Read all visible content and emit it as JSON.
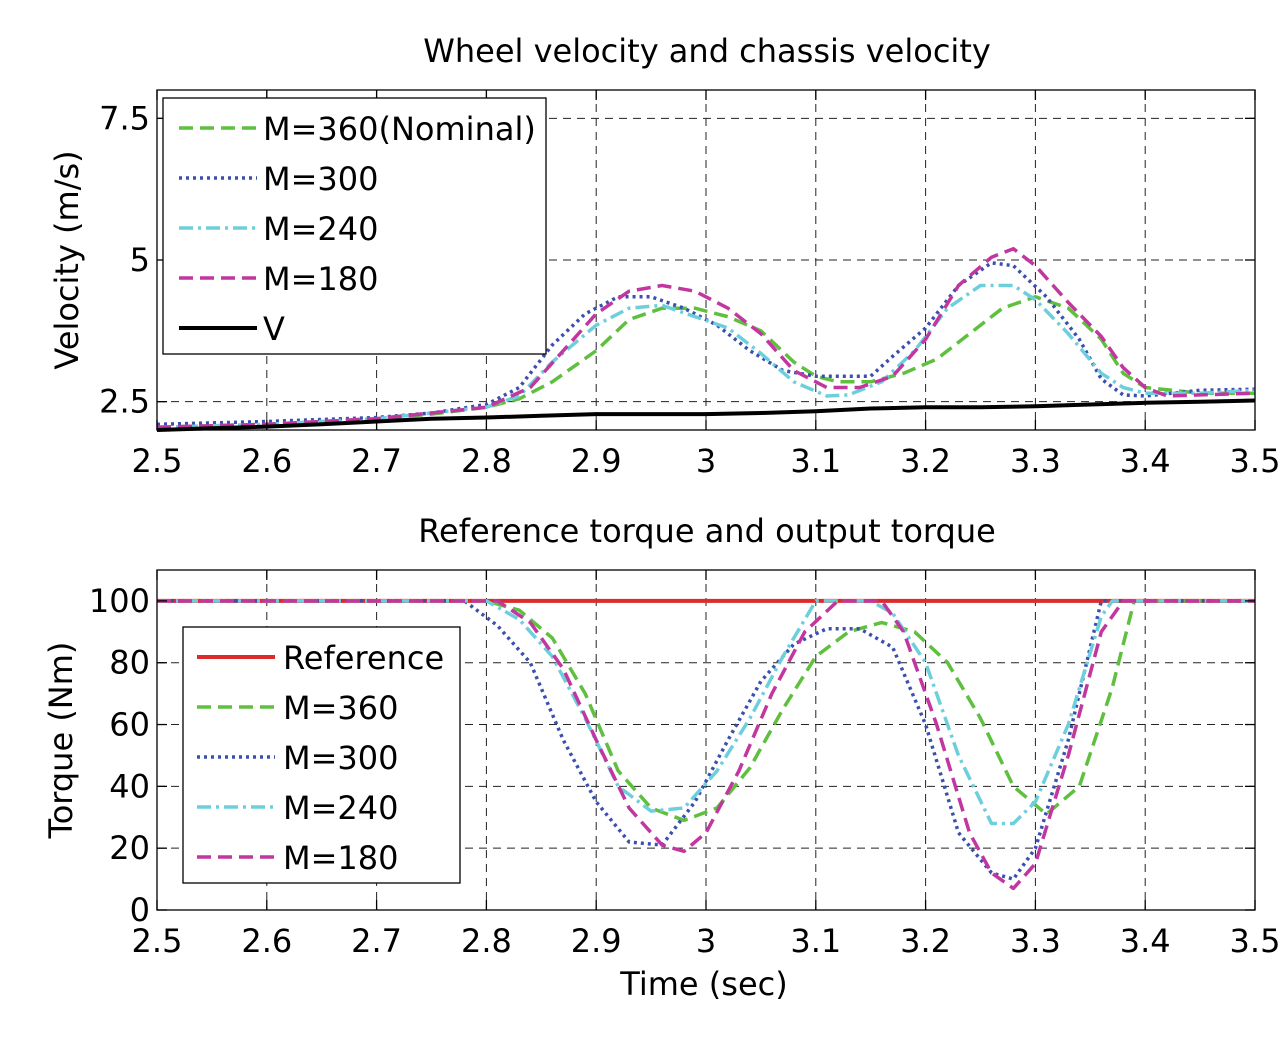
{
  "chart_data": [
    {
      "type": "line",
      "title": "Wheel velocity and chassis velocity",
      "xlabel": "",
      "ylabel": "Velocity (m/s)",
      "xlim": [
        2.5,
        3.5
      ],
      "ylim": [
        2.0,
        8.0
      ],
      "xticks": [
        2.5,
        2.6,
        2.7,
        2.8,
        2.9,
        3.0,
        3.1,
        3.2,
        3.3,
        3.4,
        3.5
      ],
      "xtick_labels": [
        "2.5",
        "2.6",
        "2.7",
        "2.8",
        "2.9",
        "3",
        "3.1",
        "3.2",
        "3.3",
        "3.4",
        "3.5"
      ],
      "yticks": [
        2.5,
        5,
        7.5
      ],
      "ytick_labels": [
        "2.5",
        "5",
        "7.5"
      ],
      "grid": true,
      "legend_position": "top-left",
      "series": [
        {
          "name": "M=360(Nominal)",
          "color": "#5fbf3f",
          "style": "dashed",
          "x": [
            2.5,
            2.6,
            2.7,
            2.75,
            2.8,
            2.83,
            2.86,
            2.9,
            2.93,
            2.96,
            2.99,
            3.02,
            3.05,
            3.08,
            3.1,
            3.12,
            3.15,
            3.18,
            3.21,
            3.24,
            3.27,
            3.3,
            3.33,
            3.36,
            3.38,
            3.4,
            3.45,
            3.5
          ],
          "y": [
            2.05,
            2.1,
            2.2,
            2.28,
            2.4,
            2.55,
            2.85,
            3.4,
            3.95,
            4.15,
            4.15,
            4.0,
            3.75,
            3.2,
            2.95,
            2.85,
            2.85,
            3.0,
            3.25,
            3.7,
            4.15,
            4.35,
            4.15,
            3.6,
            3.0,
            2.75,
            2.65,
            2.65
          ]
        },
        {
          "name": "M=300",
          "color": "#3b4fae",
          "style": "dotted",
          "x": [
            2.5,
            2.6,
            2.7,
            2.75,
            2.8,
            2.83,
            2.86,
            2.89,
            2.92,
            2.95,
            2.98,
            3.01,
            3.04,
            3.07,
            3.1,
            3.12,
            3.15,
            3.17,
            3.2,
            3.23,
            3.26,
            3.28,
            3.31,
            3.34,
            3.36,
            3.38,
            3.4,
            3.45,
            3.5
          ],
          "y": [
            2.1,
            2.15,
            2.22,
            2.3,
            2.45,
            2.75,
            3.5,
            4.05,
            4.35,
            4.35,
            4.15,
            3.85,
            3.4,
            3.05,
            2.95,
            2.95,
            2.95,
            3.3,
            3.8,
            4.55,
            4.95,
            4.9,
            4.35,
            3.6,
            2.9,
            2.62,
            2.6,
            2.7,
            2.72
          ]
        },
        {
          "name": "M=240",
          "color": "#6ecfdc",
          "style": "dashdot",
          "x": [
            2.5,
            2.6,
            2.7,
            2.8,
            2.83,
            2.86,
            2.9,
            2.93,
            2.96,
            2.99,
            3.02,
            3.05,
            3.08,
            3.11,
            3.13,
            3.16,
            3.19,
            3.22,
            3.25,
            3.28,
            3.3,
            3.33,
            3.36,
            3.38,
            3.4,
            3.45,
            3.5
          ],
          "y": [
            2.05,
            2.1,
            2.2,
            2.4,
            2.6,
            3.2,
            3.85,
            4.15,
            4.2,
            4.0,
            3.8,
            3.35,
            2.85,
            2.6,
            2.62,
            2.85,
            3.4,
            4.15,
            4.55,
            4.55,
            4.3,
            3.7,
            3.0,
            2.75,
            2.65,
            2.65,
            2.7
          ]
        },
        {
          "name": "M=180",
          "color": "#c2379f",
          "style": "dashed",
          "x": [
            2.5,
            2.6,
            2.7,
            2.8,
            2.84,
            2.87,
            2.9,
            2.93,
            2.96,
            2.99,
            3.02,
            3.05,
            3.08,
            3.11,
            3.14,
            3.17,
            3.2,
            3.23,
            3.26,
            3.28,
            3.3,
            3.33,
            3.36,
            3.38,
            3.4,
            3.42,
            3.45,
            3.5
          ],
          "y": [
            2.05,
            2.1,
            2.2,
            2.4,
            2.75,
            3.4,
            4.05,
            4.45,
            4.55,
            4.45,
            4.15,
            3.7,
            3.05,
            2.75,
            2.75,
            2.95,
            3.6,
            4.55,
            5.05,
            5.2,
            4.9,
            4.25,
            3.65,
            3.1,
            2.75,
            2.6,
            2.62,
            2.65
          ]
        },
        {
          "name": "V",
          "color": "#000000",
          "style": "solid",
          "x": [
            2.5,
            2.55,
            2.6,
            2.65,
            2.7,
            2.75,
            2.8,
            2.85,
            2.9,
            2.95,
            3.0,
            3.05,
            3.1,
            3.15,
            3.2,
            3.25,
            3.3,
            3.35,
            3.4,
            3.45,
            3.5
          ],
          "y": [
            2.0,
            2.03,
            2.06,
            2.1,
            2.15,
            2.2,
            2.22,
            2.25,
            2.28,
            2.28,
            2.28,
            2.3,
            2.33,
            2.38,
            2.4,
            2.4,
            2.42,
            2.45,
            2.48,
            2.5,
            2.52
          ]
        }
      ]
    },
    {
      "type": "line",
      "title": "Reference torque and output torque",
      "xlabel": "Time (sec)",
      "ylabel": "Torque (Nm)",
      "xlim": [
        2.5,
        3.5
      ],
      "ylim": [
        0,
        110
      ],
      "xticks": [
        2.5,
        2.6,
        2.7,
        2.8,
        2.9,
        3.0,
        3.1,
        3.2,
        3.3,
        3.4,
        3.5
      ],
      "xtick_labels": [
        "2.5",
        "2.6",
        "2.7",
        "2.8",
        "2.9",
        "3",
        "3.1",
        "3.2",
        "3.3",
        "3.4",
        "3.5"
      ],
      "yticks": [
        0,
        20,
        40,
        60,
        80,
        100
      ],
      "ytick_labels": [
        "0",
        "20",
        "40",
        "60",
        "80",
        "100"
      ],
      "grid": true,
      "legend_position": "bottom-left",
      "series": [
        {
          "name": "Reference",
          "color": "#dd2a2a",
          "style": "solid",
          "x": [
            2.5,
            3.5
          ],
          "y": [
            100,
            100
          ]
        },
        {
          "name": "M=360",
          "color": "#5fbf3f",
          "style": "dashed",
          "x": [
            2.5,
            2.8,
            2.83,
            2.86,
            2.89,
            2.92,
            2.95,
            2.98,
            3.01,
            3.04,
            3.07,
            3.1,
            3.13,
            3.16,
            3.19,
            3.22,
            3.25,
            3.28,
            3.31,
            3.34,
            3.37,
            3.39,
            3.5
          ],
          "y": [
            100,
            100,
            97,
            88,
            70,
            45,
            33,
            29,
            33,
            46,
            65,
            82,
            90,
            93,
            90,
            80,
            62,
            40,
            31,
            40,
            72,
            100,
            100
          ]
        },
        {
          "name": "M=300",
          "color": "#3b4fae",
          "style": "dotted",
          "x": [
            2.5,
            2.78,
            2.81,
            2.84,
            2.87,
            2.9,
            2.93,
            2.96,
            2.99,
            3.02,
            3.05,
            3.08,
            3.11,
            3.14,
            3.17,
            3.2,
            3.23,
            3.26,
            3.28,
            3.3,
            3.33,
            3.36,
            3.5
          ],
          "y": [
            100,
            100,
            92,
            80,
            55,
            35,
            22,
            21,
            35,
            55,
            74,
            86,
            91,
            91,
            85,
            60,
            25,
            12,
            10,
            20,
            55,
            100,
            100
          ]
        },
        {
          "name": "M=240",
          "color": "#6ecfdc",
          "style": "dashdot",
          "x": [
            2.5,
            2.8,
            2.83,
            2.86,
            2.89,
            2.92,
            2.95,
            2.98,
            3.01,
            3.04,
            3.07,
            3.1,
            3.15,
            3.17,
            3.2,
            3.23,
            3.26,
            3.28,
            3.3,
            3.33,
            3.36,
            3.37,
            3.5
          ],
          "y": [
            100,
            100,
            94,
            82,
            62,
            40,
            32,
            33,
            45,
            62,
            82,
            100,
            100,
            96,
            80,
            50,
            28,
            28,
            35,
            60,
            95,
            100,
            100
          ]
        },
        {
          "name": "M=180",
          "color": "#c2379f",
          "style": "dashed",
          "x": [
            2.5,
            2.81,
            2.84,
            2.87,
            2.9,
            2.93,
            2.96,
            2.98,
            3.0,
            3.03,
            3.06,
            3.09,
            3.12,
            3.16,
            3.18,
            3.21,
            3.24,
            3.26,
            3.28,
            3.3,
            3.33,
            3.36,
            3.38,
            3.5
          ],
          "y": [
            100,
            100,
            93,
            78,
            55,
            33,
            21,
            19,
            25,
            45,
            70,
            90,
            100,
            100,
            90,
            60,
            25,
            12,
            7,
            15,
            50,
            90,
            100,
            100
          ]
        }
      ]
    }
  ]
}
